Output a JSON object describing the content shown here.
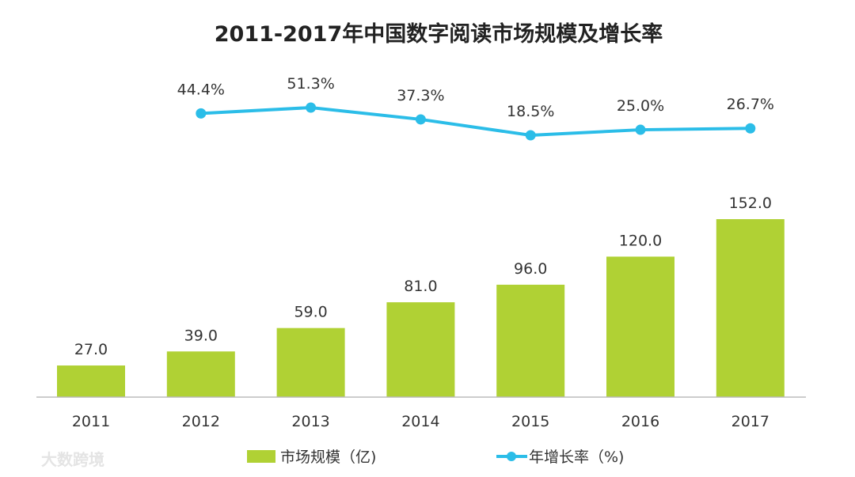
{
  "chart_data": {
    "type": "bar",
    "title": "2011-2017年中国数字阅读市场规模及增长率",
    "categories": [
      "2011",
      "2012",
      "2013",
      "2014",
      "2015",
      "2016",
      "2017"
    ],
    "series": [
      {
        "name": "市场规模（亿)",
        "type": "bar",
        "color": "#b0d134",
        "values": [
          27.0,
          39.0,
          59.0,
          81.0,
          96.0,
          120.0,
          152.0
        ],
        "labels": [
          "27.0",
          "39.0",
          "59.0",
          "81.0",
          "96.0",
          "120.0",
          "152.0"
        ]
      },
      {
        "name": "年增长率（%)",
        "type": "line",
        "color": "#2bbde8",
        "values": [
          null,
          44.4,
          51.3,
          37.3,
          18.5,
          25.0,
          26.7
        ],
        "labels": [
          "",
          "44.4%",
          "51.3%",
          "37.3%",
          "18.5%",
          "25.0%",
          "26.7%"
        ]
      }
    ],
    "legend": "bottom",
    "grid": false
  },
  "watermark": "大数跨境"
}
